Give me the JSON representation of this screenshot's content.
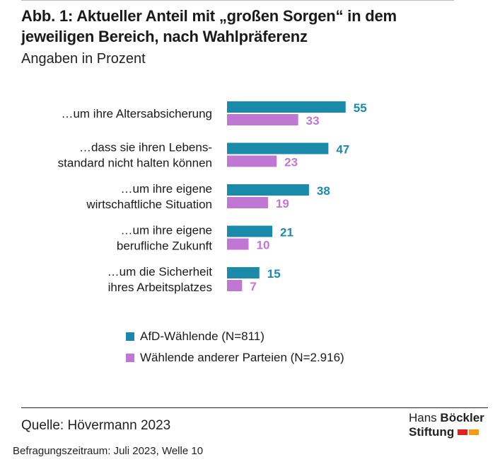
{
  "title": "Abb. 1: Aktueller Anteil mit „großen Sorgen“ in dem jeweiligen Bereich, nach Wahlpräferenz",
  "subtitle": "Angaben in Prozent",
  "chart_data": {
    "type": "bar",
    "orientation": "horizontal",
    "categories": [
      [
        "…um ihre Altersabsicherung"
      ],
      [
        "…dass sie ihren Lebens-",
        "standard nicht halten können"
      ],
      [
        "…um ihre eigene",
        "wirtschaftliche Situation"
      ],
      [
        "…um ihre eigene",
        "berufliche Zukunft"
      ],
      [
        "…um die Sicherheit",
        "ihres Arbeitsplatzes"
      ]
    ],
    "series": [
      {
        "name": "AfD-Wählende (N=811)",
        "values": [
          55,
          47,
          38,
          21,
          15
        ],
        "color": "#1a8aaa"
      },
      {
        "name": "Wählende anderer Parteien (N=2.916)",
        "values": [
          33,
          23,
          19,
          10,
          7
        ],
        "color": "#c077d4"
      }
    ],
    "data_labels": true,
    "legend_position": "bottom"
  },
  "source": "Quelle: Hövermann 2023",
  "footnote": "Befragungszeitraum: Juli 2023, Welle 10",
  "logo": {
    "line1_regular": "Hans ",
    "line1_bold": "Böckler",
    "line2": "Stiftung"
  }
}
